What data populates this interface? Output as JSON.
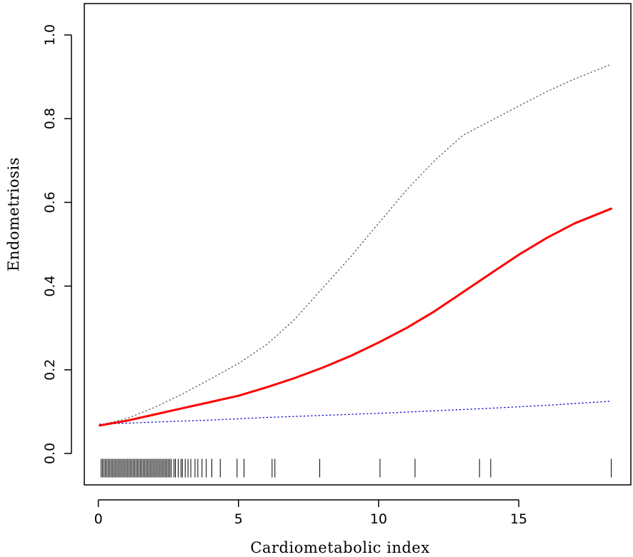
{
  "chart_data": {
    "type": "line",
    "title": "",
    "xlabel": "Cardiometabolic index",
    "ylabel": "Endometriosis",
    "xlim": [
      -0.5,
      19.0
    ],
    "ylim": [
      -0.075,
      1.075
    ],
    "xticks": [
      0,
      5,
      10,
      15
    ],
    "yticks": [
      0.0,
      0.2,
      0.4,
      0.6,
      0.8,
      1.0
    ],
    "xtick_labels": [
      "0",
      "5",
      "10",
      "15"
    ],
    "ytick_labels": [
      "0.0",
      "0.2",
      "0.4",
      "0.6",
      "0.8",
      "1.0"
    ],
    "grid": false,
    "legend": "none",
    "series": [
      {
        "role": "fit",
        "color": "#ff0000",
        "style": "solid",
        "x": [
          0.05,
          1,
          2,
          3,
          4,
          5,
          6,
          7,
          8,
          9,
          10,
          11,
          12,
          13,
          14,
          15,
          16,
          17,
          18.3
        ],
        "y": [
          0.067,
          0.078,
          0.093,
          0.108,
          0.123,
          0.138,
          0.158,
          0.18,
          0.205,
          0.233,
          0.265,
          0.3,
          0.34,
          0.385,
          0.43,
          0.475,
          0.515,
          0.55,
          0.585
        ]
      },
      {
        "role": "upper-ci",
        "color": "#555555",
        "style": "dotted",
        "x": [
          0.05,
          1,
          2,
          3,
          4,
          5,
          6,
          7,
          8,
          9,
          10,
          11,
          12,
          13,
          14,
          15,
          16,
          17,
          18.3
        ],
        "y": [
          0.068,
          0.083,
          0.11,
          0.142,
          0.178,
          0.215,
          0.26,
          0.32,
          0.395,
          0.47,
          0.55,
          0.63,
          0.7,
          0.76,
          0.795,
          0.83,
          0.865,
          0.895,
          0.93
        ]
      },
      {
        "role": "lower-ci",
        "color": "#0000cc",
        "style": "dotted",
        "x": [
          0.05,
          2,
          4,
          6,
          8,
          10,
          12,
          14,
          16,
          18.3
        ],
        "y": [
          0.07,
          0.075,
          0.08,
          0.086,
          0.091,
          0.096,
          0.102,
          0.108,
          0.115,
          0.125
        ]
      }
    ],
    "rug": {
      "y_baseline": -0.035,
      "x": [
        0.1,
        0.15,
        0.2,
        0.25,
        0.3,
        0.35,
        0.4,
        0.45,
        0.5,
        0.55,
        0.6,
        0.65,
        0.7,
        0.75,
        0.8,
        0.85,
        0.9,
        0.95,
        1.0,
        1.05,
        1.1,
        1.15,
        1.2,
        1.25,
        1.3,
        1.35,
        1.4,
        1.45,
        1.5,
        1.55,
        1.6,
        1.65,
        1.7,
        1.75,
        1.8,
        1.85,
        1.9,
        1.95,
        2.0,
        2.05,
        2.1,
        2.15,
        2.2,
        2.25,
        2.3,
        2.35,
        2.4,
        2.45,
        2.5,
        2.55,
        2.6,
        2.7,
        2.75,
        2.85,
        2.95,
        3.0,
        3.1,
        3.2,
        3.3,
        3.45,
        3.55,
        3.7,
        3.85,
        4.05,
        4.35,
        4.95,
        5.2,
        6.2,
        6.3,
        7.9,
        10.05,
        11.3,
        13.6,
        14.0,
        18.3
      ]
    }
  }
}
